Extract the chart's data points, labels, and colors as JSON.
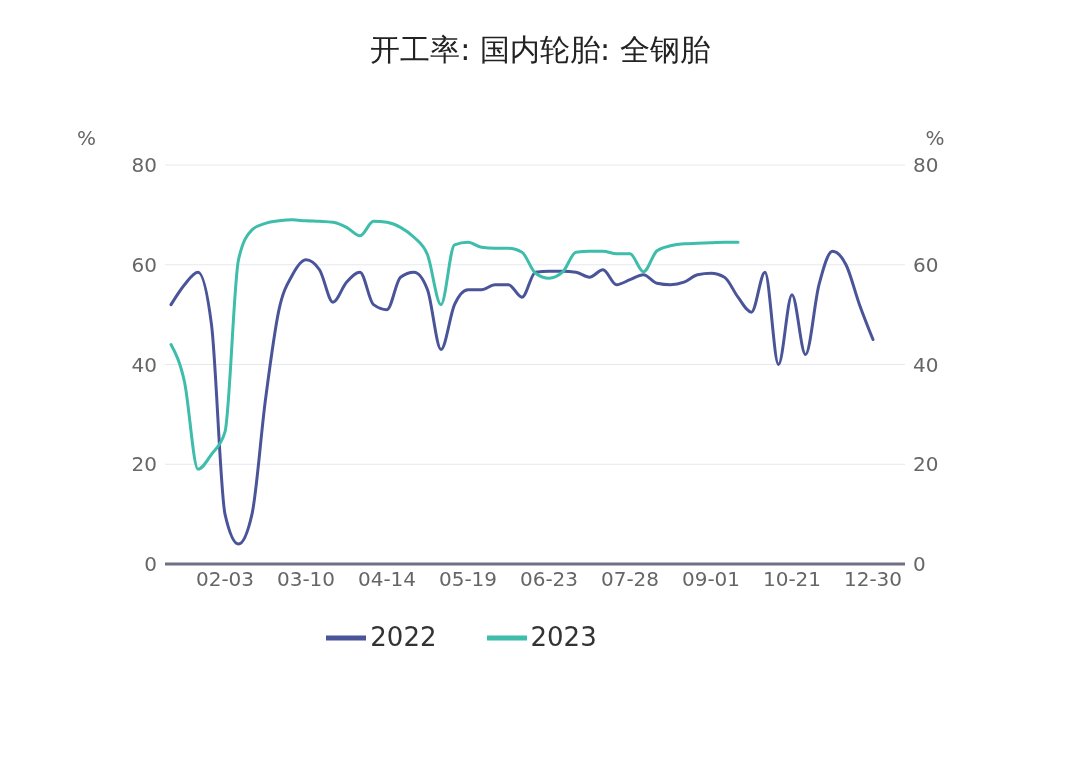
{
  "chart_data": {
    "type": "line",
    "title": "开工率: 国内轮胎: 全钢胎",
    "ylabel": "%",
    "y2label": "%",
    "categories": [
      null,
      null,
      null,
      null,
      "02-03",
      null,
      null,
      null,
      null,
      null,
      "03-10",
      null,
      null,
      null,
      null,
      null,
      "04-14",
      null,
      null,
      null,
      null,
      null,
      "05-19",
      null,
      null,
      null,
      null,
      null,
      "06-23",
      null,
      null,
      null,
      null,
      null,
      "07-28",
      null,
      null,
      null,
      null,
      null,
      "09-01",
      null,
      null,
      null,
      null,
      null,
      "10-21",
      null,
      null,
      null,
      null,
      null,
      "12-30"
    ],
    "ylim": [
      0,
      80
    ],
    "yticks": [
      0,
      20,
      40,
      60,
      80
    ],
    "y2lim": [
      0,
      80
    ],
    "y2ticks": [
      0,
      20,
      40,
      60,
      80
    ],
    "grid": "y",
    "legend": "bottom",
    "marker": "none",
    "series": [
      {
        "name": "2022",
        "color": "#4a5499",
        "values": [
          52,
          56,
          58.5,
          48,
          10,
          4,
          10,
          33,
          51,
          58,
          61,
          59,
          52.5,
          56.5,
          58.5,
          52,
          51,
          57.5,
          58.5,
          55,
          43,
          52,
          55,
          55,
          56,
          56,
          53.5,
          58.5,
          58.7,
          58.7,
          58.5,
          57.5,
          59,
          56,
          57,
          58,
          56.3,
          56,
          56.5,
          58,
          58.3,
          57.5,
          53.5,
          50.5,
          58.5,
          40,
          54,
          42,
          56,
          62.7,
          60,
          52,
          45
        ]
      },
      {
        "name": "2023",
        "color": "#3dbdaa",
        "values": [
          44,
          36.5,
          19,
          22,
          26.5,
          61,
          67,
          68.3,
          68.8,
          69,
          68.8,
          68.7,
          68.5,
          67.5,
          65.8,
          68.7,
          68.5,
          67.5,
          65.5,
          62,
          52,
          64,
          64.5,
          63.5,
          63.3,
          63.3,
          62.5,
          58.3,
          57.3,
          58.5,
          62.5,
          62.7,
          62.7,
          62.2,
          62.2,
          58.6,
          62.8,
          63.8,
          64.2,
          64.3,
          64.4,
          64.5,
          64.5,
          null,
          null,
          null,
          null,
          null,
          null,
          null,
          null,
          null,
          null
        ]
      }
    ]
  }
}
